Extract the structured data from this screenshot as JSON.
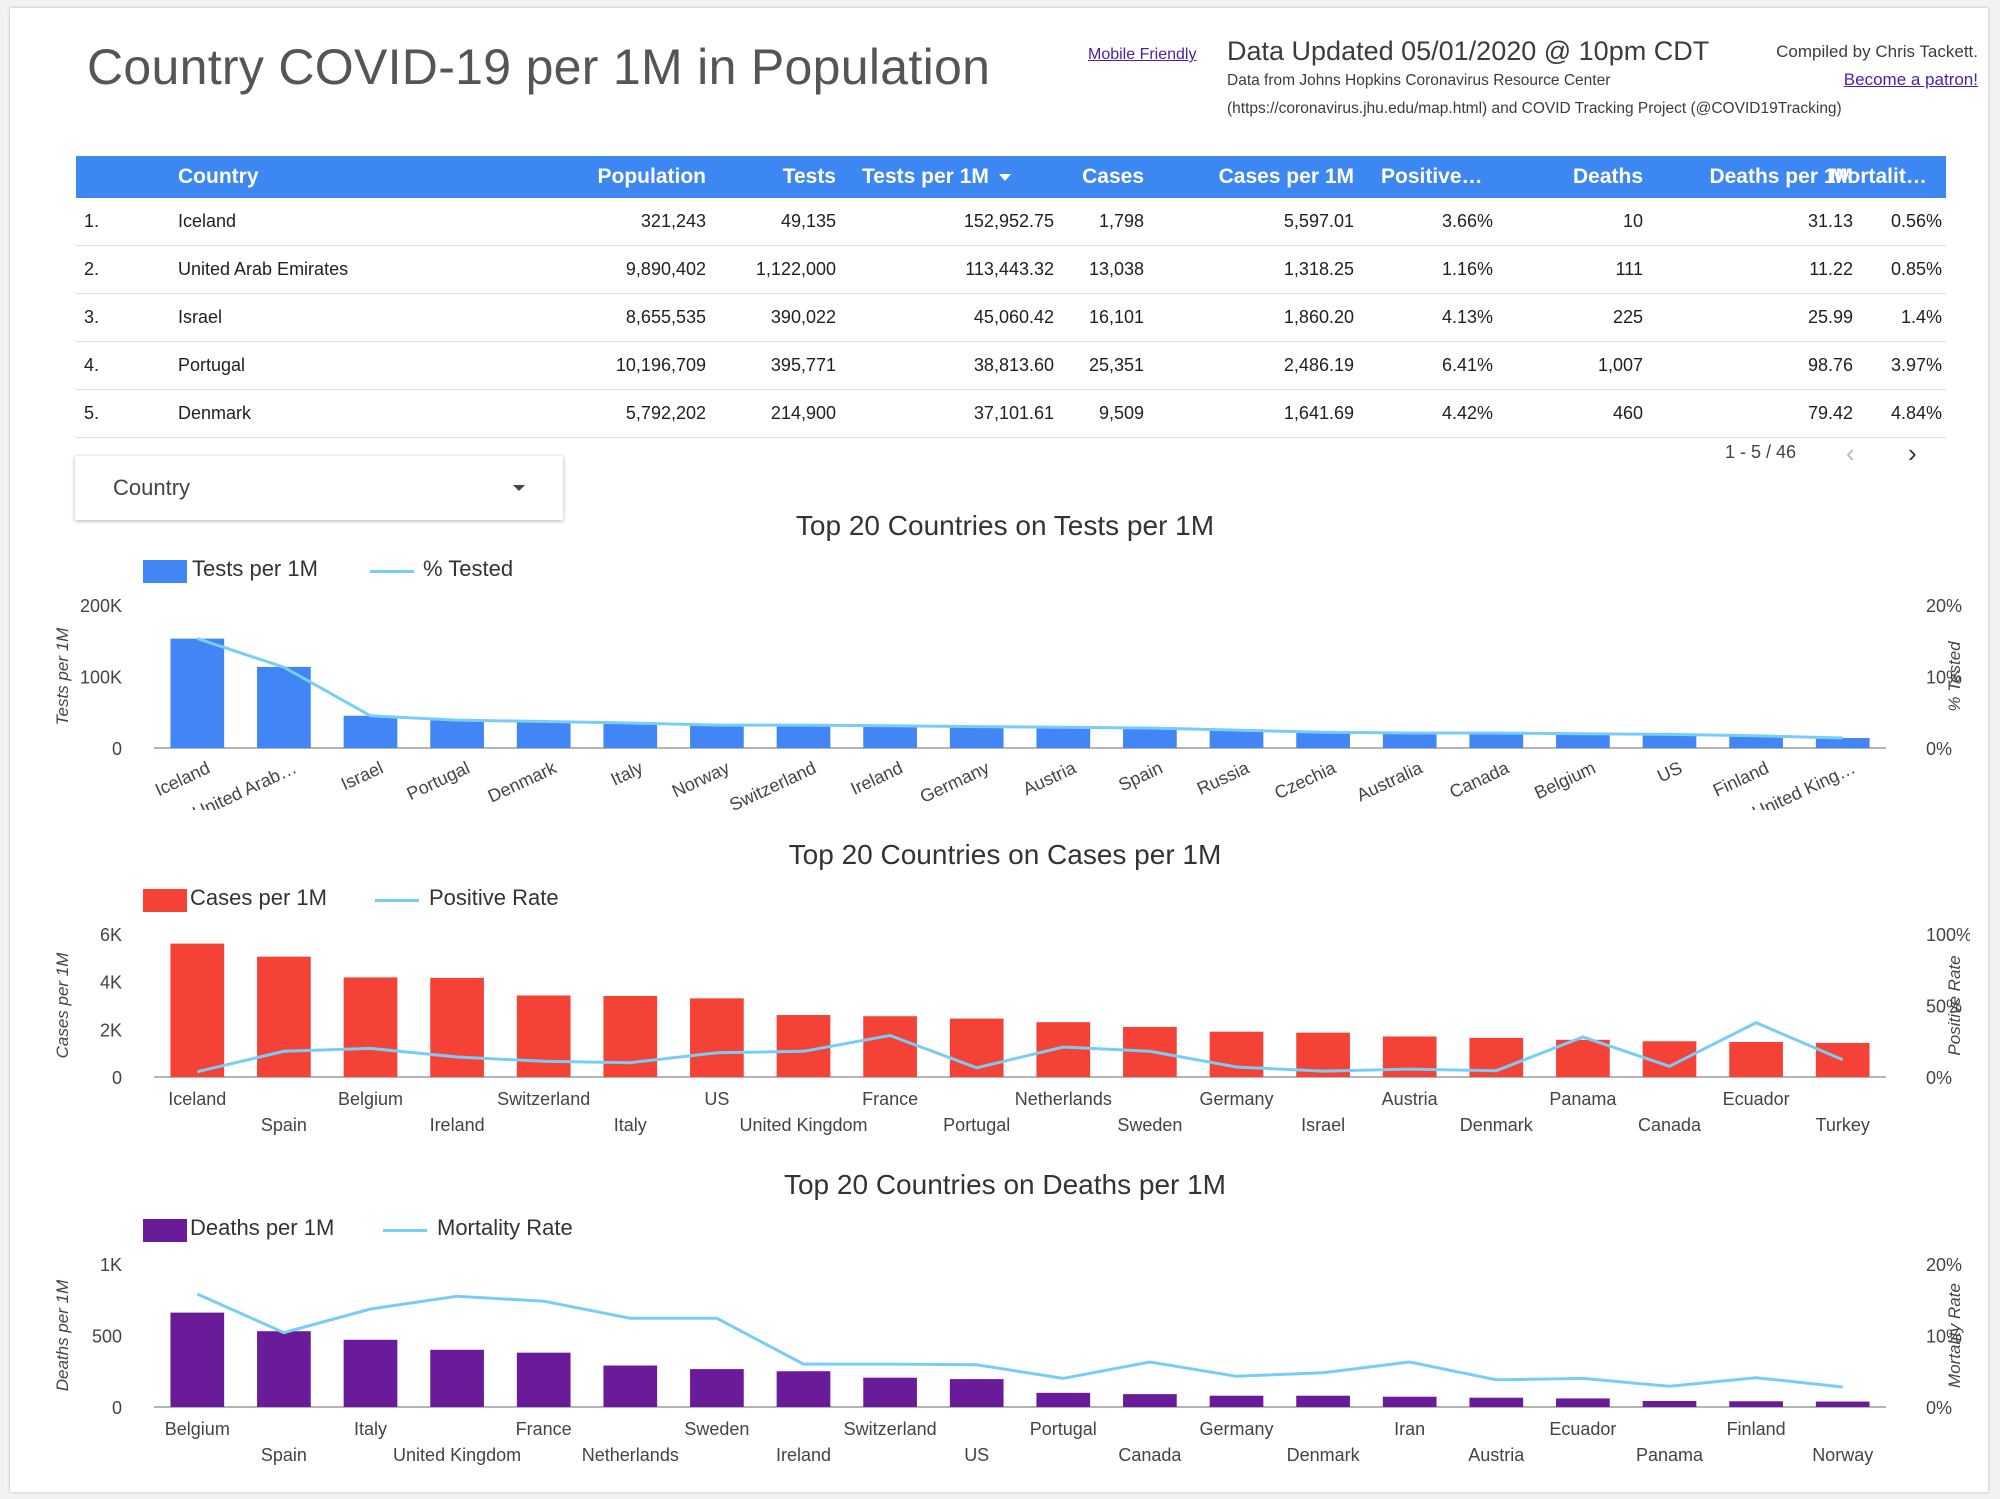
{
  "header": {
    "title": "Country COVID-19 per 1M in Population",
    "mobile_link": "Mobile Friendly",
    "updated": "Data Updated 05/01/2020 @ 10pm CDT",
    "source_line1": "Data from Johns Hopkins Coronavirus Resource Center",
    "source_line2": "(https://coronavirus.jhu.edu/map.html) and COVID Tracking Project (@COVID19Tracking)",
    "compiled_by": "Compiled by Chris Tackett.",
    "patron_link": "Become a patron!"
  },
  "table": {
    "columns": [
      "Country",
      "Population",
      "Tests",
      "Tests per 1M",
      "Cases",
      "Cases per 1M",
      "Positive…",
      "Deaths",
      "Deaths per 1M",
      "Mortalit…"
    ],
    "rows": [
      {
        "rank": "1.",
        "country": "Iceland",
        "population": "321,243",
        "tests": "49,135",
        "tests_per_1m": "152,952.75",
        "cases": "1,798",
        "cases_per_1m": "5,597.01",
        "positive": "3.66%",
        "deaths": "10",
        "deaths_per_1m": "31.13",
        "mortality": "0.56%"
      },
      {
        "rank": "2.",
        "country": "United Arab Emirates",
        "population": "9,890,402",
        "tests": "1,122,000",
        "tests_per_1m": "113,443.32",
        "cases": "13,038",
        "cases_per_1m": "1,318.25",
        "positive": "1.16%",
        "deaths": "111",
        "deaths_per_1m": "11.22",
        "mortality": "0.85%"
      },
      {
        "rank": "3.",
        "country": "Israel",
        "population": "8,655,535",
        "tests": "390,022",
        "tests_per_1m": "45,060.42",
        "cases": "16,101",
        "cases_per_1m": "1,860.20",
        "positive": "4.13%",
        "deaths": "225",
        "deaths_per_1m": "25.99",
        "mortality": "1.4%"
      },
      {
        "rank": "4.",
        "country": "Portugal",
        "population": "10,196,709",
        "tests": "395,771",
        "tests_per_1m": "38,813.60",
        "cases": "25,351",
        "cases_per_1m": "2,486.19",
        "positive": "6.41%",
        "deaths": "1,007",
        "deaths_per_1m": "98.76",
        "mortality": "3.97%"
      },
      {
        "rank": "5.",
        "country": "Denmark",
        "population": "5,792,202",
        "tests": "214,900",
        "tests_per_1m": "37,101.61",
        "cases": "9,509",
        "cases_per_1m": "1,641.69",
        "positive": "4.42%",
        "deaths": "460",
        "deaths_per_1m": "79.42",
        "mortality": "4.84%"
      }
    ],
    "pagination": "1 - 5 / 46",
    "sort_icon": "caret-down-icon"
  },
  "filter": {
    "label": "Country",
    "icon": "dropdown-caret-icon"
  },
  "colors": {
    "header_blue": "#3d87f2",
    "line": "#78cdf7",
    "tests_bar": "#4285f4",
    "cases_bar": "#f44336",
    "deaths_bar": "#6a1b9a"
  },
  "chart_data": [
    {
      "type": "bar",
      "title": "Top 20 Countries on Tests per 1M",
      "ylabel": "Tests per 1M",
      "y2label": "% Tested",
      "ylim": [
        0,
        200000
      ],
      "y2lim": [
        0,
        20
      ],
      "yticks": [
        "200K",
        "100K",
        "0"
      ],
      "y2ticks": [
        "20%",
        "10%",
        "0%"
      ],
      "categories": [
        "Iceland",
        "United Arab…",
        "Israel",
        "Portugal",
        "Denmark",
        "Italy",
        "Norway",
        "Switzerland",
        "Ireland",
        "Germany",
        "Austria",
        "Spain",
        "Russia",
        "Czechia",
        "Australia",
        "Canada",
        "Belgium",
        "US",
        "Finland",
        "United King…"
      ],
      "series": [
        {
          "name": "Tests per 1M",
          "kind": "bar",
          "color": "#4285f4",
          "values": [
            152953,
            113443,
            45060,
            38814,
            37102,
            35000,
            32000,
            31500,
            31000,
            30000,
            29000,
            27500,
            25000,
            22000,
            21000,
            21000,
            20000,
            19000,
            17000,
            14000
          ]
        },
        {
          "name": "% Tested",
          "kind": "line",
          "axis": "right",
          "color": "#78cdf7",
          "values": [
            15.3,
            11.3,
            4.5,
            3.9,
            3.7,
            3.5,
            3.2,
            3.2,
            3.1,
            3.0,
            2.9,
            2.8,
            2.5,
            2.2,
            2.1,
            2.1,
            2.0,
            1.9,
            1.7,
            1.4
          ]
        }
      ],
      "label_style": "rotated"
    },
    {
      "type": "bar",
      "title": "Top 20 Countries on Cases per 1M",
      "ylabel": "Cases per 1M",
      "y2label": "Positive Rate",
      "ylim": [
        0,
        6000
      ],
      "y2lim": [
        0,
        100
      ],
      "yticks": [
        "6K",
        "4K",
        "2K",
        "0"
      ],
      "y2ticks": [
        "100%",
        "50%",
        "0%"
      ],
      "categories": [
        "Iceland",
        "Spain",
        "Belgium",
        "Ireland",
        "Switzerland",
        "Italy",
        "US",
        "United Kingdom",
        "France",
        "Portugal",
        "Netherlands",
        "Sweden",
        "Germany",
        "Israel",
        "Austria",
        "Denmark",
        "Panama",
        "Canada",
        "Ecuador",
        "Turkey"
      ],
      "series": [
        {
          "name": "Cases per 1M",
          "kind": "bar",
          "color": "#f44336",
          "values": [
            5597,
            5050,
            4180,
            4160,
            3420,
            3400,
            3300,
            2600,
            2550,
            2450,
            2300,
            2100,
            1900,
            1860,
            1700,
            1640,
            1560,
            1500,
            1470,
            1430
          ]
        },
        {
          "name": "Positive Rate",
          "kind": "line",
          "axis": "right",
          "color": "#78cdf7",
          "values": [
            3.7,
            18,
            20,
            14,
            11,
            10,
            17,
            18,
            29,
            6.4,
            21,
            18,
            7,
            4.1,
            5.5,
            4.4,
            28,
            7.5,
            38,
            12
          ]
        }
      ],
      "label_style": "staggered"
    },
    {
      "type": "bar",
      "title": "Top 20 Countries on Deaths per 1M",
      "ylabel": "Deaths per 1M",
      "y2label": "Mortality Rate",
      "ylim": [
        0,
        1000
      ],
      "y2lim": [
        0,
        20
      ],
      "yticks": [
        "1K",
        "500",
        "0"
      ],
      "y2ticks": [
        "20%",
        "10%",
        "0%"
      ],
      "categories": [
        "Belgium",
        "Spain",
        "Italy",
        "United Kingdom",
        "France",
        "Netherlands",
        "Sweden",
        "Ireland",
        "Switzerland",
        "US",
        "Portugal",
        "Canada",
        "Germany",
        "Denmark",
        "Iran",
        "Austria",
        "Ecuador",
        "Panama",
        "Finland",
        "Norway"
      ],
      "series": [
        {
          "name": "Deaths per 1M",
          "kind": "bar",
          "color": "#6a1b9a",
          "values": [
            660,
            530,
            470,
            400,
            380,
            290,
            265,
            250,
            205,
            195,
            99,
            90,
            79,
            79,
            72,
            65,
            60,
            42,
            40,
            38
          ]
        },
        {
          "name": "Mortality Rate",
          "kind": "line",
          "axis": "right",
          "color": "#78cdf7",
          "values": [
            15.8,
            10.4,
            13.7,
            15.5,
            14.8,
            12.4,
            12.4,
            6.0,
            6.0,
            5.9,
            4.0,
            6.3,
            4.3,
            4.8,
            6.3,
            3.8,
            4.0,
            2.9,
            4.1,
            2.8
          ]
        }
      ],
      "label_style": "staggered"
    }
  ]
}
